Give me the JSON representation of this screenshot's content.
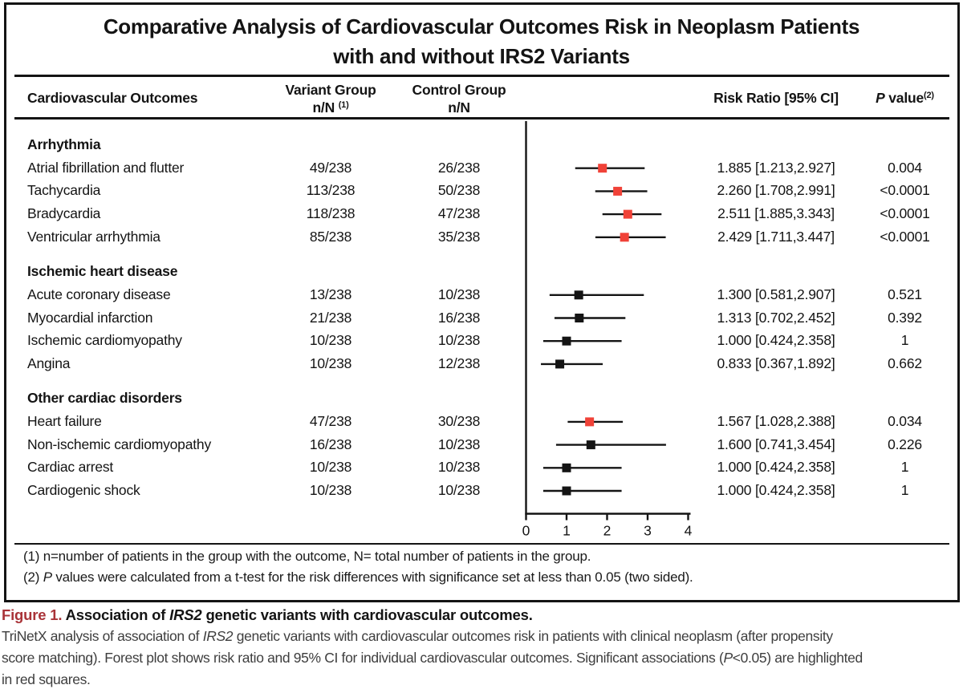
{
  "title": {
    "line1": "Comparative Analysis of Cardiovascular Outcomes Risk in Neoplasm Patients",
    "line2": "with and without IRS2 Variants"
  },
  "header": {
    "outcomes": "Cardiovascular Outcomes",
    "variant_group": "Variant Group",
    "variant_nn": "n/N",
    "variant_sup": "(1)",
    "control_group": "Control Group",
    "control_nn": "n/N",
    "risk_ratio": "Risk Ratio [95% CI]",
    "p_italic": "P",
    "p_rest": " value",
    "p_sup": "(2)"
  },
  "chart_data": {
    "type": "forest",
    "title": "Comparative Analysis of Cardiovascular Outcomes Risk in Neoplasm Patients with and without IRS2 Variants",
    "xlabel": "Risk Ratio",
    "xlim": [
      0,
      4
    ],
    "x_ticks": [
      0,
      1,
      2,
      3,
      4
    ],
    "legend": "Significant associations (P<0.05) shown as red squares; others black",
    "groups": [
      {
        "label": "Arrhythmia",
        "items": [
          {
            "label": "Atrial fibrillation and flutter",
            "variant": "49/238",
            "control": "26/238",
            "rr": 1.885,
            "ci": [
              1.213,
              2.927
            ],
            "rr_text": "1.885 [1.213,2.927]",
            "p": "0.004",
            "significant": true
          },
          {
            "label": "Tachycardia",
            "variant": "113/238",
            "control": "50/238",
            "rr": 2.26,
            "ci": [
              1.708,
              2.991
            ],
            "rr_text": "2.260 [1.708,2.991]",
            "p": "<0.0001",
            "significant": true
          },
          {
            "label": "Bradycardia",
            "variant": "118/238",
            "control": "47/238",
            "rr": 2.511,
            "ci": [
              1.885,
              3.343
            ],
            "rr_text": "2.511 [1.885,3.343]",
            "p": "<0.0001",
            "significant": true
          },
          {
            "label": "Ventricular arrhythmia",
            "variant": "85/238",
            "control": "35/238",
            "rr": 2.429,
            "ci": [
              1.711,
              3.447
            ],
            "rr_text": "2.429 [1.711,3.447]",
            "p": "<0.0001",
            "significant": true
          }
        ]
      },
      {
        "label": "Ischemic heart disease",
        "items": [
          {
            "label": "Acute coronary disease",
            "variant": "13/238",
            "control": "10/238",
            "rr": 1.3,
            "ci": [
              0.581,
              2.907
            ],
            "rr_text": "1.300 [0.581,2.907]",
            "p": "0.521",
            "significant": false
          },
          {
            "label": "Myocardial infarction",
            "variant": "21/238",
            "control": "16/238",
            "rr": 1.313,
            "ci": [
              0.702,
              2.452
            ],
            "rr_text": "1.313 [0.702,2.452]",
            "p": "0.392",
            "significant": false
          },
          {
            "label": "Ischemic cardiomyopathy",
            "variant": "10/238",
            "control": "10/238",
            "rr": 1.0,
            "ci": [
              0.424,
              2.358
            ],
            "rr_text": "1.000 [0.424,2.358]",
            "p": "1",
            "significant": false
          },
          {
            "label": "Angina",
            "variant": "10/238",
            "control": "12/238",
            "rr": 0.833,
            "ci": [
              0.367,
              1.892
            ],
            "rr_text": "0.833 [0.367,1.892]",
            "p": "0.662",
            "significant": false
          }
        ]
      },
      {
        "label": "Other cardiac disorders",
        "items": [
          {
            "label": "Heart failure",
            "variant": "47/238",
            "control": "30/238",
            "rr": 1.567,
            "ci": [
              1.028,
              2.388
            ],
            "rr_text": "1.567 [1.028,2.388]",
            "p": "0.034",
            "significant": true
          },
          {
            "label": "Non-ischemic cardiomyopathy",
            "variant": "16/238",
            "control": "10/238",
            "rr": 1.6,
            "ci": [
              0.741,
              3.454
            ],
            "rr_text": "1.600 [0.741,3.454]",
            "p": "0.226",
            "significant": false
          },
          {
            "label": "Cardiac arrest",
            "variant": "10/238",
            "control": "10/238",
            "rr": 1.0,
            "ci": [
              0.424,
              2.358
            ],
            "rr_text": "1.000 [0.424,2.358]",
            "p": "1",
            "significant": false
          },
          {
            "label": "Cardiogenic shock",
            "variant": "10/238",
            "control": "10/238",
            "rr": 1.0,
            "ci": [
              0.424,
              2.358
            ],
            "rr_text": "1.000 [0.424,2.358]",
            "p": "1",
            "significant": false
          }
        ]
      }
    ]
  },
  "footnotes": {
    "line1": "(1) n=number of patients in the group with the outcome, N= total number of patients in the group.",
    "line2_prefix": "(2) ",
    "line2_italic": "P",
    "line2_rest": " values were calculated from a t-test for the risk differences with significance set at less than 0.05 (two sided)."
  },
  "caption": {
    "figure_label": "Figure 1.",
    "title_pre": " Association of ",
    "title_gene": "IRS2",
    "title_post": " genetic variants with cardiovascular outcomes.",
    "body_line1_pre": "TriNetX analysis of association of ",
    "body_line1_gene": "IRS2",
    "body_line1_post": " genetic variants with cardiovascular outcomes risk in patients with clinical neoplasm (after propensity",
    "body_line2_pre": "score matching). Forest plot shows risk ratio and 95% CI for individual cardiovascular outcomes. Significant associations (",
    "body_line2_italic": "P",
    "body_line2_post": "<0.05) are highlighted",
    "body_line3": "in red squares."
  },
  "colors": {
    "significant": "#F04238",
    "normal": "#141414",
    "axis": "#141414",
    "figure_label": "#A93338"
  }
}
